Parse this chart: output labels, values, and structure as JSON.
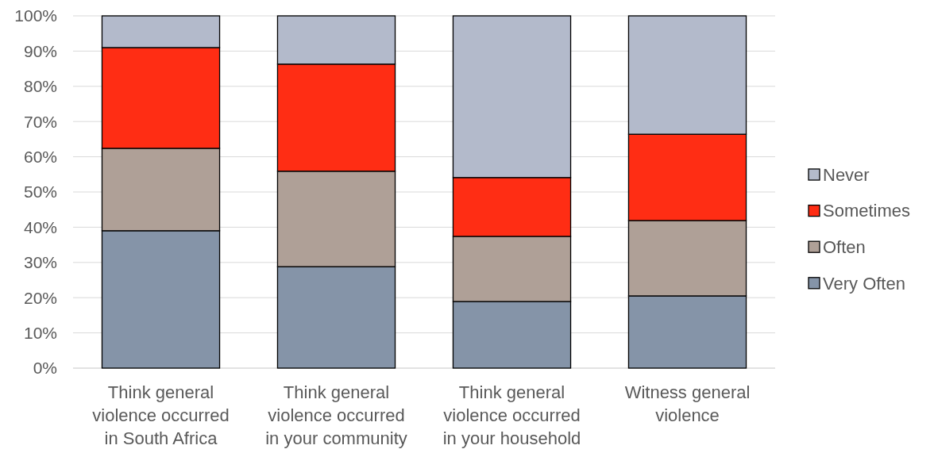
{
  "chart_data": {
    "type": "bar",
    "stacked": true,
    "categories": [
      "Think general violence occurred in South Africa",
      "Think general violence occurred in your community",
      "Think general violence occurred in your household",
      "Witness general violence"
    ],
    "series": [
      {
        "name": "Very Often",
        "color": "#8594a8",
        "values": [
          39.0,
          28.8,
          18.9,
          20.5
        ]
      },
      {
        "name": "Often",
        "color": "#afa097",
        "values": [
          23.4,
          27.1,
          18.5,
          21.4
        ]
      },
      {
        "name": "Sometimes",
        "color": "#ff2d14",
        "values": [
          28.6,
          30.4,
          16.7,
          24.5
        ]
      },
      {
        "name": "Never",
        "color": "#b3bacb",
        "values": [
          9.0,
          13.7,
          45.9,
          33.6
        ]
      }
    ],
    "ylim": [
      0,
      100
    ],
    "yticks": [
      {
        "value": 0,
        "label": "0%"
      },
      {
        "value": 10,
        "label": "10%"
      },
      {
        "value": 20,
        "label": "20%"
      },
      {
        "value": 30,
        "label": "30%"
      },
      {
        "value": 40,
        "label": "40%"
      },
      {
        "value": 50,
        "label": "50%"
      },
      {
        "value": 60,
        "label": "60%"
      },
      {
        "value": 70,
        "label": "70%"
      },
      {
        "value": 80,
        "label": "80%"
      },
      {
        "value": 90,
        "label": "90%"
      },
      {
        "value": 100,
        "label": "100%"
      }
    ],
    "grid": "y",
    "legend": "right"
  }
}
